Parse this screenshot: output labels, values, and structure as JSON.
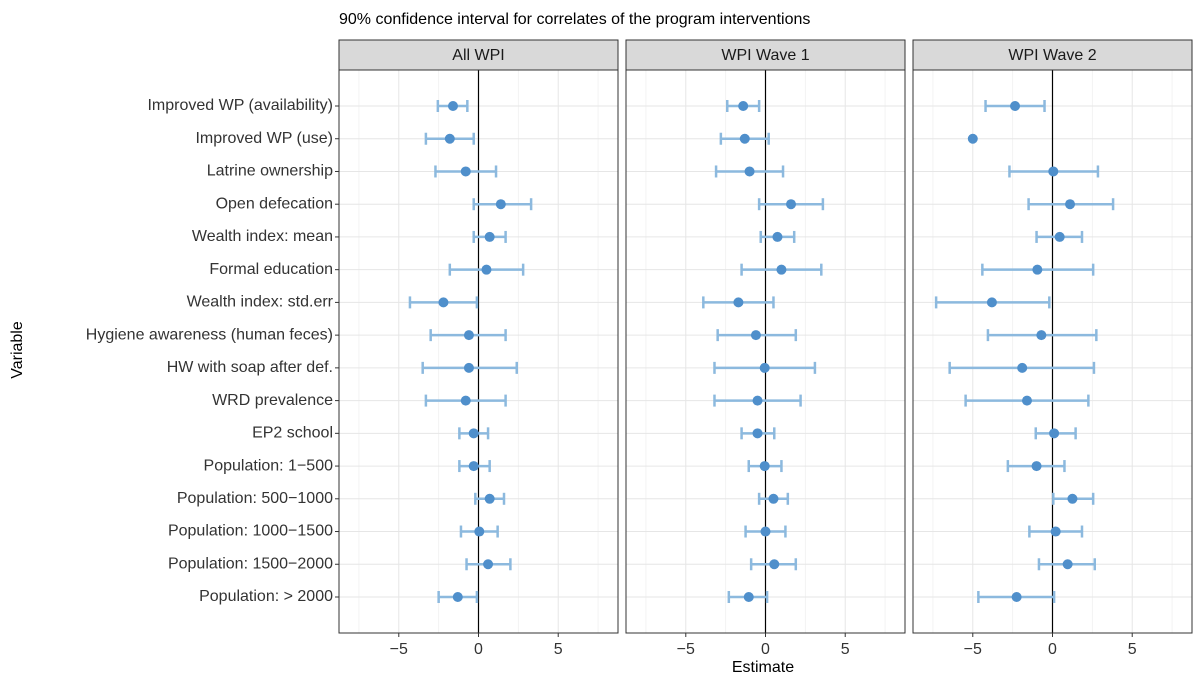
{
  "chart_data": {
    "type": "errorbar",
    "title": "90% confidence interval for correlates of the program interventions",
    "xlabel": "Estimate",
    "ylabel": "Variable",
    "categories": [
      "Improved WP  (availability)",
      "Improved WP (use)",
      "Latrine ownership",
      "Open defecation",
      "Wealth index: mean",
      "Formal education",
      "Wealth index: std.err",
      "Hygiene awareness (human feces)",
      "HW with soap after def.",
      "WRD prevalence",
      "EP2 school",
      "Population: 1−500",
      "Population: 500−1000",
      "Population: 1000−1500",
      "Population: 1500−2000",
      "Population: > 2000"
    ],
    "xlim": [
      -8.75,
      8.75
    ],
    "xticks": [
      {
        "value": -5,
        "label": "−5"
      },
      0,
      5
    ],
    "minor_xticks": [
      -7.5,
      -2.5,
      2.5,
      7.5
    ],
    "refline": 0,
    "grid": true,
    "color": "#4f8fcb",
    "errorbar_color": "#8cb9de",
    "panels": [
      {
        "title": "All WPI",
        "values": [
          -1.6,
          -1.8,
          -0.8,
          1.4,
          0.7,
          0.5,
          -2.2,
          -0.6,
          -0.6,
          -0.8,
          -0.3,
          -0.3,
          0.7,
          0.05,
          0.6,
          -1.3
        ],
        "lower": [
          -2.55,
          -3.3,
          -2.7,
          -0.3,
          -0.3,
          -1.8,
          -4.3,
          -3.0,
          -3.5,
          -3.3,
          -1.2,
          -1.2,
          -0.2,
          -1.1,
          -0.75,
          -2.5
        ],
        "upper": [
          -0.7,
          -0.3,
          1.1,
          3.3,
          1.7,
          2.8,
          -0.1,
          1.7,
          2.4,
          1.7,
          0.6,
          0.7,
          1.6,
          1.2,
          2.0,
          -0.1
        ]
      },
      {
        "title": "WPI Wave 1",
        "values": [
          -1.4,
          -1.3,
          -1.0,
          1.6,
          0.75,
          1.0,
          -1.7,
          -0.6,
          -0.05,
          -0.5,
          -0.5,
          -0.05,
          0.5,
          0,
          0.55,
          -1.05
        ],
        "lower": [
          -2.4,
          -2.8,
          -3.1,
          -0.4,
          -0.3,
          -1.5,
          -3.9,
          -3.0,
          -3.2,
          -3.2,
          -1.5,
          -1.05,
          -0.4,
          -1.25,
          -0.9,
          -2.3
        ],
        "upper": [
          -0.4,
          0.2,
          1.1,
          3.6,
          1.8,
          3.5,
          0.5,
          1.9,
          3.1,
          2.2,
          0.55,
          1.0,
          1.4,
          1.25,
          1.9,
          0.1
        ]
      },
      {
        "title": "WPI Wave 2",
        "values": [
          -2.35,
          -5.0,
          0.05,
          1.1,
          0.45,
          -0.95,
          -3.8,
          -0.7,
          -1.9,
          -1.6,
          0.1,
          -1.0,
          1.25,
          0.2,
          0.95,
          -2.25
        ],
        "lower": [
          -4.2,
          null,
          -2.7,
          -1.5,
          -1.0,
          -4.4,
          -7.3,
          -4.05,
          -6.45,
          -5.45,
          -1.05,
          -2.8,
          0.05,
          -1.45,
          -0.85,
          -4.65
        ],
        "upper": [
          -0.5,
          null,
          2.85,
          3.8,
          1.85,
          2.55,
          -0.2,
          2.75,
          2.6,
          2.25,
          1.45,
          0.75,
          2.55,
          1.85,
          2.65,
          0.1
        ]
      }
    ]
  }
}
